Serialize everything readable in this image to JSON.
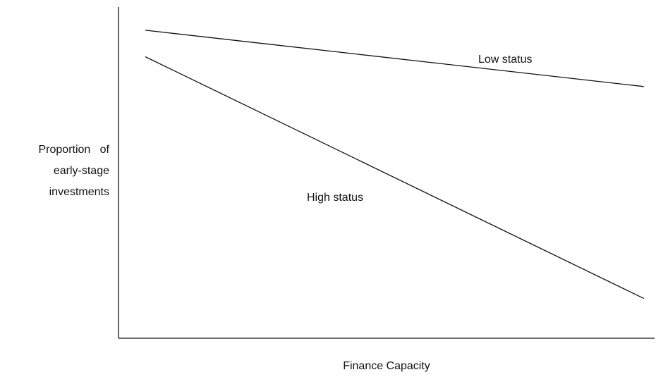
{
  "chart_data": {
    "type": "line",
    "title": "",
    "xlabel": "Finance Capacity",
    "ylabel": [
      "Proportion   of",
      "early-stage",
      "investments"
    ],
    "xlim": [
      0,
      1
    ],
    "ylim": [
      0,
      1
    ],
    "grid": false,
    "legend": "none",
    "series": [
      {
        "name": "Low status",
        "x": [
          0.05,
          0.98
        ],
        "y": [
          0.93,
          0.76
        ]
      },
      {
        "name": "High status",
        "x": [
          0.05,
          0.98
        ],
        "y": [
          0.85,
          0.12
        ]
      }
    ],
    "colors": {
      "line": "#111111",
      "axis": "#111111"
    }
  }
}
